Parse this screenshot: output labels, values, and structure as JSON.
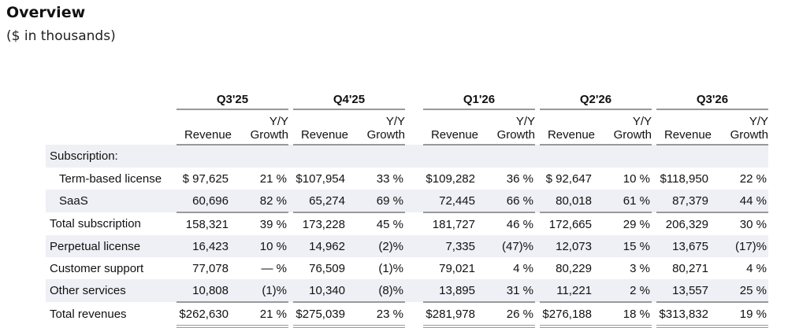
{
  "header": {
    "title": "Overview",
    "subtitle": "($ in thousands)"
  },
  "table": {
    "quarters": [
      "Q3'25",
      "Q4'25",
      "Q1'26",
      "Q2'26",
      "Q3'26"
    ],
    "col_revenue": "Revenue",
    "col_growth_line1": "Y/Y",
    "col_growth_line2": "Growth",
    "section_label": "Subscription:",
    "rows": [
      {
        "label": "Term-based license",
        "indent": true,
        "shade": false,
        "underline": "none",
        "values": [
          [
            "$ 97,625",
            "21 %"
          ],
          [
            "$107,954",
            "33 %"
          ],
          [
            "$109,282",
            "36 %"
          ],
          [
            "$ 92,647",
            "10 %"
          ],
          [
            "$118,950",
            "22 %"
          ]
        ]
      },
      {
        "label": "SaaS",
        "indent": true,
        "shade": true,
        "underline": "single",
        "values": [
          [
            "60,696",
            "82 %"
          ],
          [
            "65,274",
            "69 %"
          ],
          [
            "72,445",
            "66 %"
          ],
          [
            "80,018",
            "61 %"
          ],
          [
            "87,379",
            "44 %"
          ]
        ]
      },
      {
        "label": "Total subscription",
        "indent": false,
        "shade": false,
        "underline": "none",
        "values": [
          [
            "158,321",
            "39 %"
          ],
          [
            "173,228",
            "45 %"
          ],
          [
            "181,727",
            "46 %"
          ],
          [
            "172,665",
            "29 %"
          ],
          [
            "206,329",
            "30 %"
          ]
        ]
      },
      {
        "label": "Perpetual license",
        "indent": false,
        "shade": true,
        "underline": "none",
        "values": [
          [
            "16,423",
            "10 %"
          ],
          [
            "14,962",
            "(2)%"
          ],
          [
            "7,335",
            "(47)%"
          ],
          [
            "12,073",
            "15 %"
          ],
          [
            "13,675",
            "(17)%"
          ]
        ]
      },
      {
        "label": "Customer support",
        "indent": false,
        "shade": false,
        "underline": "none",
        "values": [
          [
            "77,078",
            "— %"
          ],
          [
            "76,509",
            "(1)%"
          ],
          [
            "79,021",
            "4 %"
          ],
          [
            "80,229",
            "3 %"
          ],
          [
            "80,271",
            "4 %"
          ]
        ]
      },
      {
        "label": "Other services",
        "indent": false,
        "shade": true,
        "underline": "single",
        "values": [
          [
            "10,808",
            "(1)%"
          ],
          [
            "10,340",
            "(8)%"
          ],
          [
            "13,895",
            "31 %"
          ],
          [
            "11,221",
            "2 %"
          ],
          [
            "13,557",
            "25 %"
          ]
        ]
      },
      {
        "label": "Total revenues",
        "indent": false,
        "shade": false,
        "underline": "double",
        "values": [
          [
            "$262,630",
            "21 %"
          ],
          [
            "$275,039",
            "23 %"
          ],
          [
            "$281,978",
            "26 %"
          ],
          [
            "$276,188",
            "18 %"
          ],
          [
            "$313,832",
            "19 %"
          ]
        ]
      }
    ]
  }
}
